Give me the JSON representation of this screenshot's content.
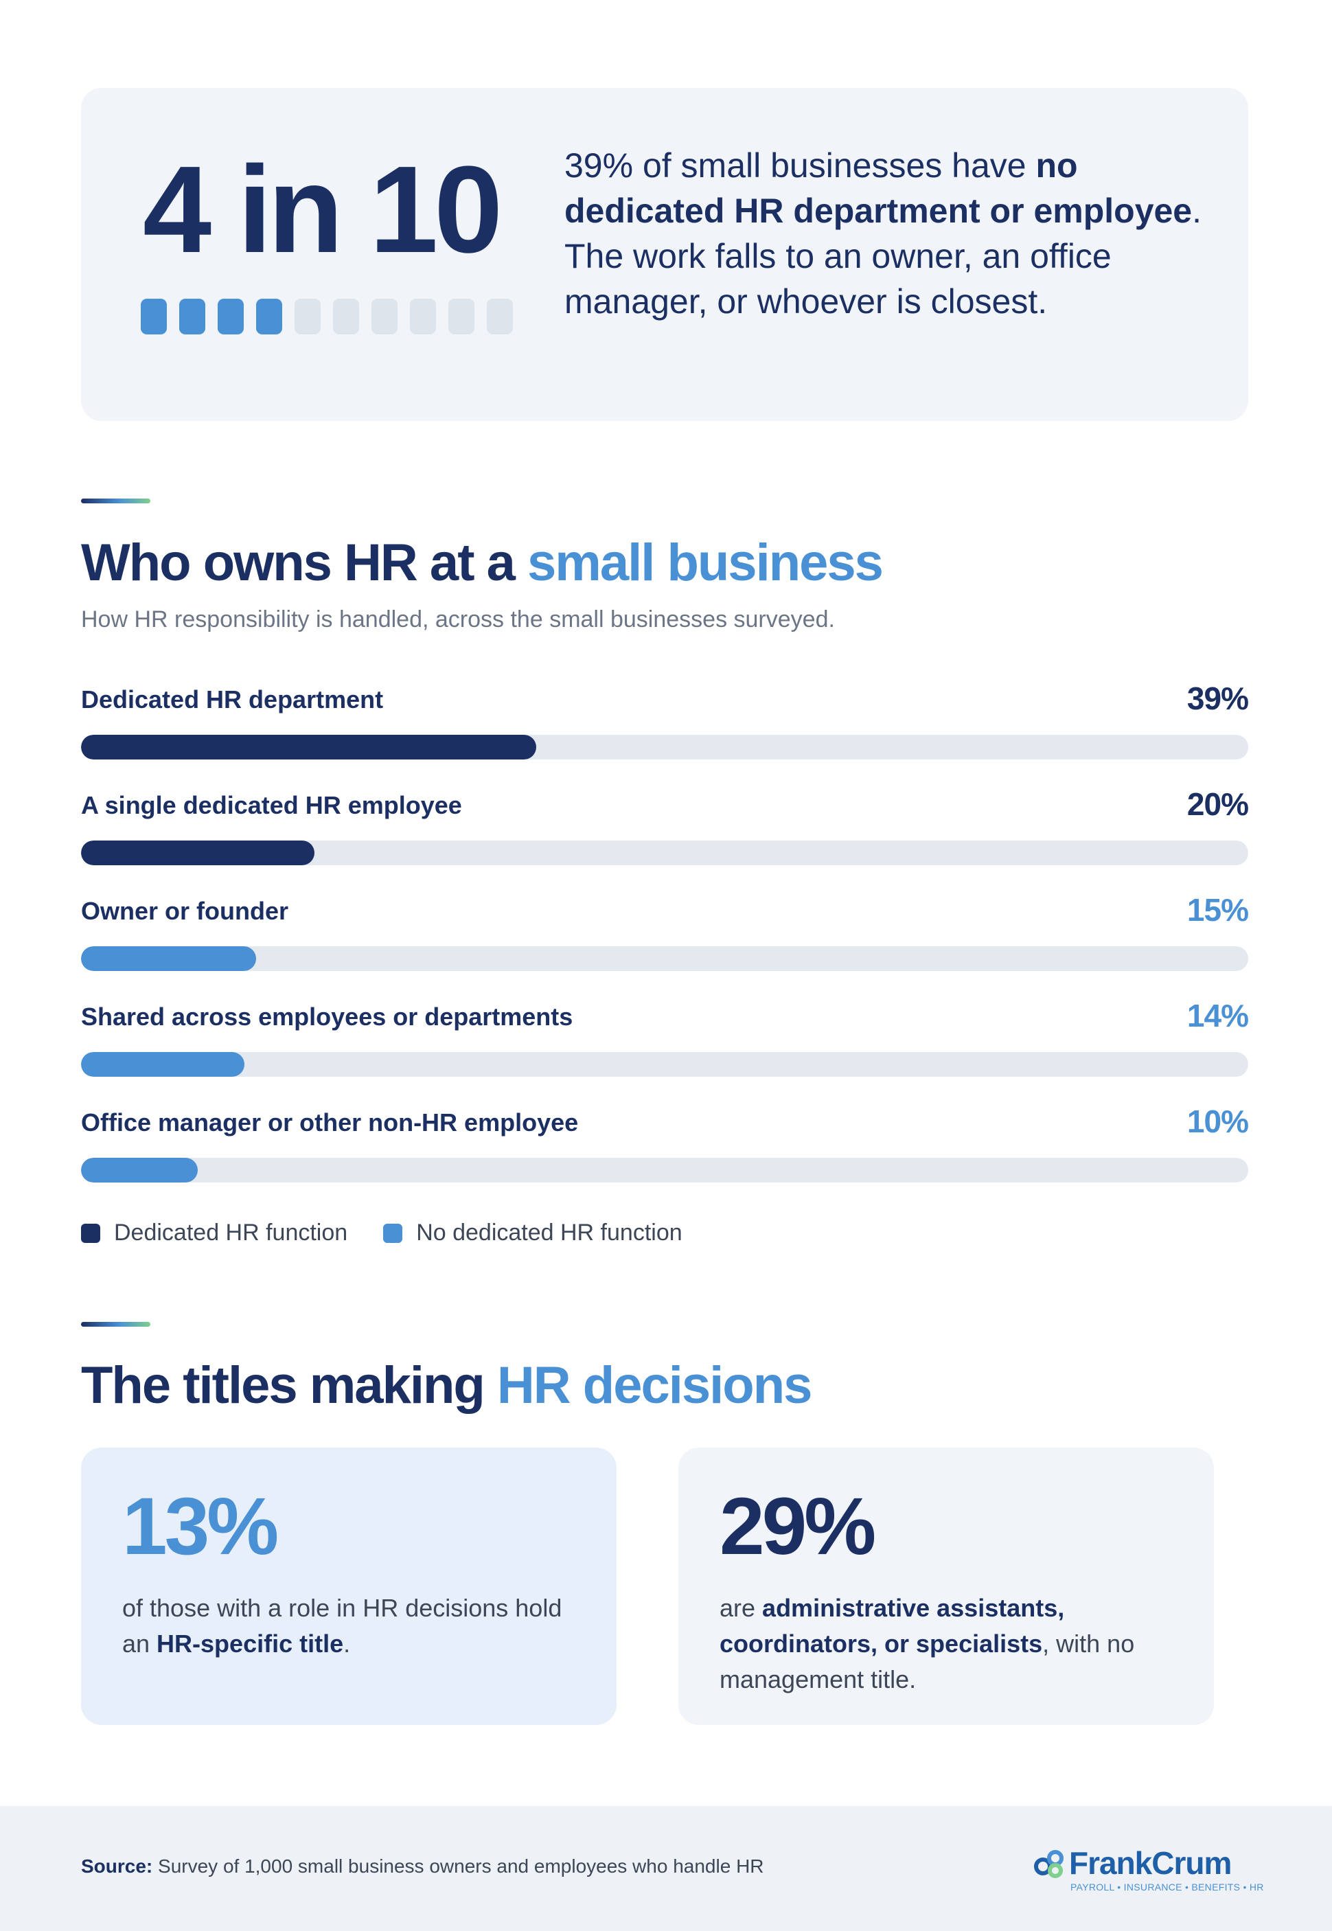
{
  "colors": {
    "navy": "#1b2f63",
    "blue": "#4a90d4",
    "track": "#e4e9f0",
    "block_off": "#dde4ec"
  },
  "hero": {
    "big": "4 in 10",
    "blocks_filled": 4,
    "blocks_total": 10,
    "text": {
      "part1": "39% of small businesses have ",
      "bold": "no dedicated HR department or employee",
      "part2": ". The work falls to an owner, an office manager, or whoever is closest."
    }
  },
  "section1": {
    "title_part1": "Who owns HR at a ",
    "title_highlight": "small business",
    "subtitle": "How HR responsibility is handled, across the small businesses surveyed."
  },
  "chart_data": {
    "type": "bar",
    "orientation": "horizontal",
    "title": "Who owns HR at a small business",
    "subtitle": "How HR responsibility is handled, across the small businesses surveyed.",
    "categories": [
      "Dedicated HR department",
      "A single dedicated HR employee",
      "Owner or founder",
      "Shared across employees or departments",
      "Office manager or other non-HR employee"
    ],
    "values": [
      39,
      20,
      15,
      14,
      10
    ],
    "value_labels": [
      "39%",
      "20%",
      "15%",
      "14%",
      "10%"
    ],
    "groups": [
      "Dedicated HR function",
      "Dedicated HR function",
      "No dedicated HR function",
      "No dedicated HR function",
      "No dedicated HR function"
    ],
    "xlim": [
      0,
      100
    ],
    "grid": false,
    "legend": [
      {
        "name": "Dedicated HR function",
        "color": "#1b2f63"
      },
      {
        "name": "No dedicated HR function",
        "color": "#4a90d4"
      }
    ],
    "legend_position": "bottom-left"
  },
  "section2": {
    "title_part1": "The titles making ",
    "title_highlight": "HR decisions"
  },
  "cards": [
    {
      "value": "13%",
      "text_part1": "of those with a role in HR decisions hold an ",
      "bold": "HR-specific title",
      "text_part2": "."
    },
    {
      "value": "29%",
      "text_part1": "are ",
      "bold": "administrative assistants, coordinators, or specialists",
      "text_part2": ", with no management title."
    }
  ],
  "footer": {
    "source_label": "Source:",
    "source_text": " Survey of 1,000 small business owners and employees who handle HR",
    "logo_name": "FrankCrum",
    "logo_tagline": "PAYROLL • INSURANCE • BENEFITS • HR"
  }
}
